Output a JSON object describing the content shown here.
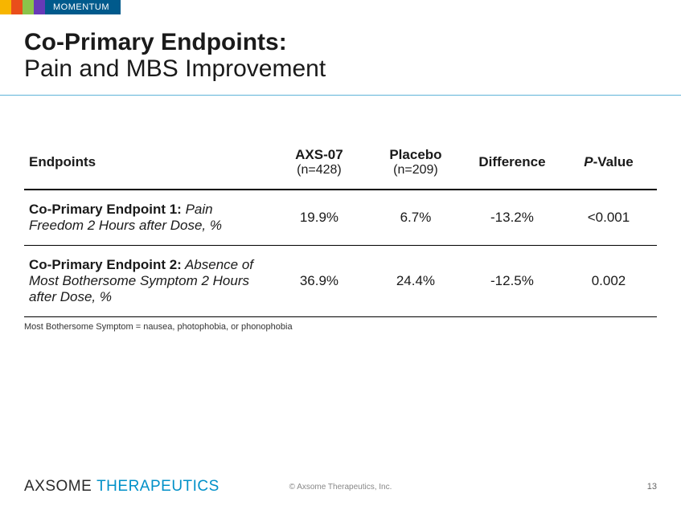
{
  "strip": {
    "segments": [
      {
        "color": "#f7b500",
        "width": 14
      },
      {
        "color": "#e94e1b",
        "width": 14
      },
      {
        "color": "#8bc34a",
        "width": 14
      },
      {
        "color": "#673ab7",
        "width": 14
      }
    ],
    "badge_label": "MOMENTUM",
    "badge_bg": "#005a8c"
  },
  "title": {
    "bold": "Co-Primary Endpoints:",
    "light": "Pain and MBS Improvement"
  },
  "accent_rule_color": "#5fb4d8",
  "table": {
    "columns": [
      {
        "header": "Endpoints",
        "sub": ""
      },
      {
        "header": "AXS-07",
        "sub": "(n=428)"
      },
      {
        "header": "Placebo",
        "sub": "(n=209)"
      },
      {
        "header": "Difference",
        "sub": ""
      },
      {
        "header_prefix_italic": "P",
        "header_rest": "-Value",
        "sub": ""
      }
    ],
    "rows": [
      {
        "label_bold": "Co-Primary Endpoint 1:",
        "label_italic": " Pain Freedom 2 Hours after Dose, %",
        "axs07": "19.9%",
        "placebo": "6.7%",
        "difference": "-13.2%",
        "pvalue": "<0.001"
      },
      {
        "label_bold": "Co-Primary Endpoint 2:",
        "label_italic": " Absence of Most Bothersome Symptom 2 Hours after Dose, %",
        "axs07": "36.9%",
        "placebo": "24.4%",
        "difference": "-12.5%",
        "pvalue": "0.002"
      }
    ]
  },
  "footnote": "Most Bothersome Symptom = nausea, photophobia, or phonophobia",
  "footer": {
    "logo_a": "AXSOME ",
    "logo_b": "THERAPEUTICS",
    "logo_b_color": "#0090c8",
    "copyright": "© Axsome Therapeutics, Inc.",
    "page": "13"
  }
}
